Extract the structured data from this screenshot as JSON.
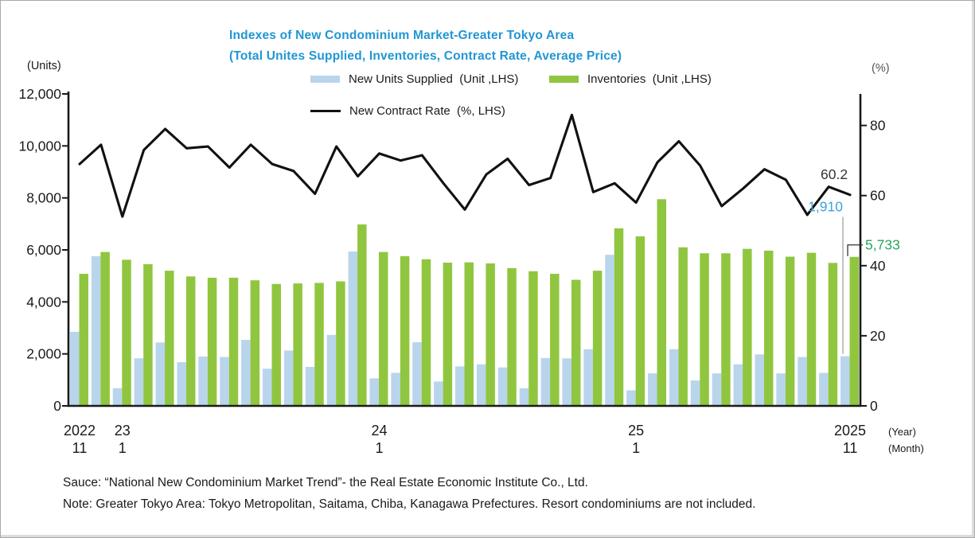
{
  "title": {
    "line1": "Indexes of New Condominium Market-Greater Tokyo Area",
    "line2": "(Total Unites Supplied, Inventories, Contract Rate, Average Price)",
    "color": "#2196d3"
  },
  "legend": {
    "items": [
      {
        "label": "New Units Supplied  (Unit ,LHS)",
        "swatch": "#b9d5ec",
        "type": "bar"
      },
      {
        "label": "Inventories  (Unit ,LHS)",
        "swatch": "#90c63f",
        "type": "bar"
      },
      {
        "label": "New Contract Rate  (%, LHS)",
        "swatch": "#111111",
        "type": "line"
      }
    ]
  },
  "axes": {
    "left_unit_label": "(Units)",
    "right_unit_label": "(%)",
    "year_caption": "(Year)",
    "month_caption": "(Month)"
  },
  "footer": {
    "source": "Sauce: “National New Condominium Market Trend”- the Real Estate Economic Institute Co., Ltd.",
    "note": "Note: Greater Tokyo Area: Tokyo Metropolitan, Saitama, Chiba, Kanagawa Prefectures. Resort condominiums are not included."
  },
  "chart_data": {
    "type": "combo",
    "categories": [
      "2022-11",
      "2022-12",
      "2023-01",
      "2023-02",
      "2023-03",
      "2023-04",
      "2023-05",
      "2023-06",
      "2023-07",
      "2023-08",
      "2023-09",
      "2023-10",
      "2023-11",
      "2023-12",
      "2024-01",
      "2024-02",
      "2024-03",
      "2024-04",
      "2024-05",
      "2024-06",
      "2024-07",
      "2024-08",
      "2024-09",
      "2024-10",
      "2024-11",
      "2024-12",
      "2025-01",
      "2025-02",
      "2025-03",
      "2025-04",
      "2025-05",
      "2025-06",
      "2025-07",
      "2025-08",
      "2025-09",
      "2025-10",
      "2025-11"
    ],
    "series": [
      {
        "name": "New Units Supplied (Unit ,LHS)",
        "type": "bar",
        "axis": "left",
        "color": "#b9d5ec",
        "values": [
          2850,
          5760,
          680,
          1830,
          2440,
          1680,
          1900,
          1880,
          2540,
          1430,
          2130,
          1500,
          2730,
          5940,
          1060,
          1270,
          2450,
          940,
          1520,
          1600,
          1480,
          680,
          1840,
          1830,
          2180,
          5810,
          600,
          1250,
          2180,
          980,
          1250,
          1600,
          1980,
          1250,
          1880,
          1270,
          1910
        ]
      },
      {
        "name": "Inventories (Unit ,LHS)",
        "type": "bar",
        "axis": "left",
        "color": "#90c63f",
        "values": [
          5080,
          5920,
          5620,
          5450,
          5200,
          4980,
          4930,
          4930,
          4830,
          4690,
          4710,
          4730,
          4790,
          6980,
          5920,
          5760,
          5640,
          5510,
          5520,
          5480,
          5300,
          5180,
          5080,
          4850,
          5200,
          6830,
          6520,
          7950,
          6100,
          5870,
          5870,
          6040,
          5970,
          5740,
          5890,
          5500,
          5733
        ]
      },
      {
        "name": "New Contract Rate (%, LHS)",
        "type": "line",
        "axis": "right",
        "color": "#111111",
        "values": [
          69,
          74.5,
          54,
          73,
          79,
          73.5,
          74,
          68,
          74.5,
          69,
          67,
          60.5,
          74,
          65.5,
          72,
          70,
          71.5,
          63.5,
          56,
          66,
          70.5,
          63,
          65,
          83,
          61,
          63.5,
          58,
          69.5,
          75.5,
          68.5,
          57,
          62,
          67.5,
          64.5,
          54.5,
          62.5,
          60.2
        ]
      }
    ],
    "left_axis": {
      "label": "(Units)",
      "min": 0,
      "max": 12000,
      "tick_step": 2000,
      "ticks": [
        0,
        2000,
        4000,
        6000,
        8000,
        10000,
        12000
      ]
    },
    "right_axis": {
      "label": "(%)",
      "min": 0,
      "max": 89,
      "ticks": [
        0,
        20,
        40,
        60,
        80
      ]
    },
    "x_axis": {
      "markers": [
        {
          "index": 0,
          "year": "2022",
          "month": "11"
        },
        {
          "index": 2,
          "year": "23",
          "month": "1"
        },
        {
          "index": 14,
          "year": "24",
          "month": "1"
        },
        {
          "index": 26,
          "year": "25",
          "month": "1"
        },
        {
          "index": 36,
          "year": "2025",
          "month": "11"
        }
      ]
    },
    "grid": false,
    "legend_position": "top",
    "annotations": [
      {
        "text": "60.2",
        "series": "rate",
        "index": 36,
        "color": "#333333"
      },
      {
        "text": "1,910",
        "series": "supplied",
        "index": 36,
        "color": "#3ba3d8"
      },
      {
        "text": "5,733",
        "series": "inventories",
        "index": 36,
        "color": "#27a65e"
      }
    ]
  }
}
